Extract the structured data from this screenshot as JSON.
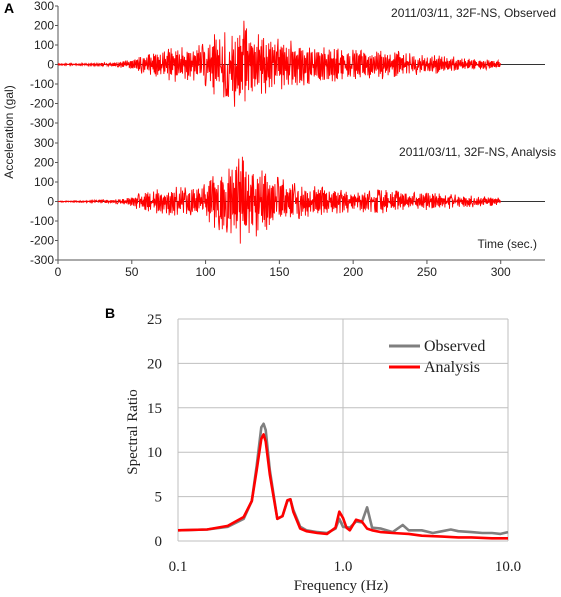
{
  "panel_a": {
    "letter": "A",
    "chart_data": {
      "type": "line",
      "ylabel": "Acceleration (gal)",
      "xlabel": "Time (sec.)",
      "xlim": [
        0,
        330
      ],
      "xticks": [
        "0",
        "50",
        "100",
        "150",
        "200",
        "250",
        "300"
      ],
      "xtick_values": [
        0,
        50,
        100,
        150,
        200,
        250,
        300
      ],
      "yticks": [
        "300",
        "200",
        "100",
        "0",
        "-100",
        "-200",
        "-300"
      ],
      "ytick_values": [
        300,
        200,
        100,
        0,
        -100,
        -200,
        -300
      ],
      "ylim": [
        -300,
        300
      ],
      "grid": false,
      "line_color": "#ff0000",
      "series": [
        {
          "annotation": "2011/03/11, 32F-NS, Observed",
          "t_range": [
            0,
            300
          ],
          "envelope": [
            [
              0,
              4
            ],
            [
              20,
              6
            ],
            [
              40,
              12
            ],
            [
              50,
              28
            ],
            [
              60,
              55
            ],
            [
              70,
              70
            ],
            [
              80,
              90
            ],
            [
              90,
              85
            ],
            [
              100,
              110
            ],
            [
              105,
              150
            ],
            [
              110,
              175
            ],
            [
              115,
              160
            ],
            [
              120,
              220
            ],
            [
              125,
              230
            ],
            [
              130,
              200
            ],
            [
              135,
              180
            ],
            [
              140,
              150
            ],
            [
              150,
              130
            ],
            [
              160,
              120
            ],
            [
              170,
              100
            ],
            [
              180,
              95
            ],
            [
              190,
              85
            ],
            [
              200,
              75
            ],
            [
              210,
              70
            ],
            [
              220,
              75
            ],
            [
              230,
              70
            ],
            [
              240,
              55
            ],
            [
              250,
              50
            ],
            [
              260,
              45
            ],
            [
              270,
              40
            ],
            [
              280,
              30
            ],
            [
              290,
              25
            ],
            [
              300,
              18
            ]
          ]
        },
        {
          "annotation": "2011/03/11, 32F-NS, Analysis",
          "t_range": [
            0,
            300
          ],
          "envelope": [
            [
              0,
              3
            ],
            [
              20,
              5
            ],
            [
              40,
              12
            ],
            [
              50,
              30
            ],
            [
              60,
              55
            ],
            [
              70,
              65
            ],
            [
              80,
              75
            ],
            [
              90,
              70
            ],
            [
              100,
              90
            ],
            [
              105,
              130
            ],
            [
              110,
              150
            ],
            [
              115,
              160
            ],
            [
              120,
              210
            ],
            [
              125,
              230
            ],
            [
              130,
              210
            ],
            [
              135,
              175
            ],
            [
              140,
              150
            ],
            [
              150,
              120
            ],
            [
              160,
              95
            ],
            [
              170,
              80
            ],
            [
              180,
              75
            ],
            [
              190,
              60
            ],
            [
              200,
              55
            ],
            [
              210,
              55
            ],
            [
              220,
              60
            ],
            [
              230,
              55
            ],
            [
              240,
              45
            ],
            [
              250,
              50
            ],
            [
              260,
              40
            ],
            [
              270,
              35
            ],
            [
              280,
              30
            ],
            [
              290,
              25
            ],
            [
              300,
              18
            ]
          ]
        }
      ]
    }
  },
  "panel_b": {
    "letter": "B",
    "chart_data": {
      "type": "line",
      "xlabel": "Frequency (Hz)",
      "ylabel": "Spectral Ratio",
      "xscale": "log",
      "xlim": [
        0.1,
        10.0
      ],
      "xticks": [
        "0.1",
        "1.0",
        "10.0"
      ],
      "xtick_values": [
        0.1,
        1.0,
        10.0
      ],
      "ylim": [
        0,
        25
      ],
      "yticks": [
        "0",
        "5",
        "10",
        "15",
        "20",
        "25"
      ],
      "ytick_values": [
        0,
        5,
        10,
        15,
        20,
        25
      ],
      "grid": true,
      "legend_position": "top-right",
      "series": [
        {
          "name": "Observed",
          "color": "#7f7f7f",
          "points": [
            [
              0.1,
              1.2
            ],
            [
              0.15,
              1.3
            ],
            [
              0.2,
              1.6
            ],
            [
              0.25,
              2.5
            ],
            [
              0.28,
              4.5
            ],
            [
              0.3,
              8.5
            ],
            [
              0.32,
              12.8
            ],
            [
              0.33,
              13.2
            ],
            [
              0.34,
              12.5
            ],
            [
              0.36,
              8.0
            ],
            [
              0.4,
              2.5
            ],
            [
              0.43,
              2.8
            ],
            [
              0.46,
              4.5
            ],
            [
              0.48,
              4.7
            ],
            [
              0.5,
              3.5
            ],
            [
              0.55,
              1.6
            ],
            [
              0.6,
              1.2
            ],
            [
              0.7,
              1.0
            ],
            [
              0.8,
              0.9
            ],
            [
              0.9,
              1.4
            ],
            [
              0.95,
              2.5
            ],
            [
              1.0,
              1.6
            ],
            [
              1.1,
              1.5
            ],
            [
              1.2,
              2.2
            ],
            [
              1.3,
              2.1
            ],
            [
              1.4,
              3.8
            ],
            [
              1.5,
              1.5
            ],
            [
              1.7,
              1.4
            ],
            [
              2.0,
              1.0
            ],
            [
              2.3,
              1.8
            ],
            [
              2.5,
              1.2
            ],
            [
              3.0,
              1.2
            ],
            [
              3.5,
              0.9
            ],
            [
              4.0,
              1.1
            ],
            [
              4.5,
              1.3
            ],
            [
              5.0,
              1.1
            ],
            [
              6.0,
              1.0
            ],
            [
              7.0,
              0.9
            ],
            [
              8.0,
              0.9
            ],
            [
              9.0,
              0.8
            ],
            [
              10.0,
              1.0
            ]
          ]
        },
        {
          "name": "Analysis",
          "color": "#ff0000",
          "points": [
            [
              0.1,
              1.2
            ],
            [
              0.15,
              1.3
            ],
            [
              0.2,
              1.7
            ],
            [
              0.25,
              2.7
            ],
            [
              0.28,
              4.5
            ],
            [
              0.3,
              8.0
            ],
            [
              0.32,
              11.5
            ],
            [
              0.33,
              12.0
            ],
            [
              0.34,
              11.2
            ],
            [
              0.36,
              7.5
            ],
            [
              0.4,
              2.5
            ],
            [
              0.43,
              2.8
            ],
            [
              0.46,
              4.6
            ],
            [
              0.48,
              4.7
            ],
            [
              0.5,
              3.3
            ],
            [
              0.55,
              1.4
            ],
            [
              0.6,
              1.1
            ],
            [
              0.7,
              0.9
            ],
            [
              0.8,
              0.8
            ],
            [
              0.9,
              1.5
            ],
            [
              0.95,
              3.3
            ],
            [
              1.0,
              2.6
            ],
            [
              1.05,
              1.5
            ],
            [
              1.1,
              1.2
            ],
            [
              1.2,
              2.4
            ],
            [
              1.3,
              2.2
            ],
            [
              1.4,
              1.4
            ],
            [
              1.5,
              1.2
            ],
            [
              1.7,
              1.0
            ],
            [
              2.0,
              0.9
            ],
            [
              2.5,
              0.8
            ],
            [
              3.0,
              0.6
            ],
            [
              4.0,
              0.5
            ],
            [
              5.0,
              0.4
            ],
            [
              6.0,
              0.4
            ],
            [
              8.0,
              0.3
            ],
            [
              10.0,
              0.3
            ]
          ]
        }
      ]
    }
  }
}
